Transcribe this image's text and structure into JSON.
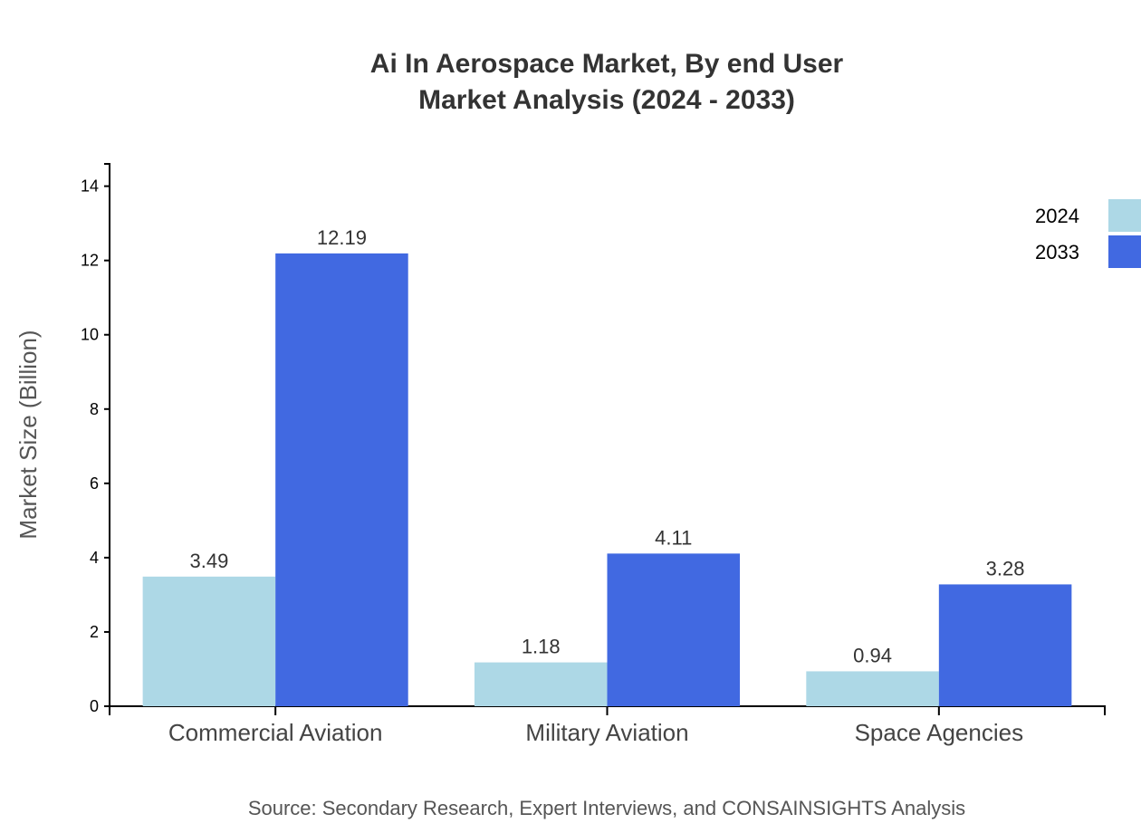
{
  "chart_data": {
    "type": "bar",
    "title": [
      "Ai In Aerospace Market, By end User",
      "Market Analysis (2024 - 2033)"
    ],
    "ylabel": "Market Size (Billion)",
    "xlabel": "",
    "categories": [
      "Commercial Aviation",
      "Military Aviation",
      "Space Agencies"
    ],
    "series": [
      {
        "name": "2024",
        "color": "#ADD8E6",
        "values": [
          3.49,
          1.18,
          0.94
        ]
      },
      {
        "name": "2033",
        "color": "#4169E1",
        "values": [
          12.19,
          4.11,
          3.28
        ]
      }
    ],
    "ylim": [
      0,
      14.6
    ],
    "yticks": [
      0,
      2,
      4,
      6,
      8,
      10,
      12,
      14
    ],
    "grid": false,
    "legend": "top-right"
  },
  "source": "Source: Secondary Research, Expert Interviews, and CONSAINSIGHTS Analysis"
}
